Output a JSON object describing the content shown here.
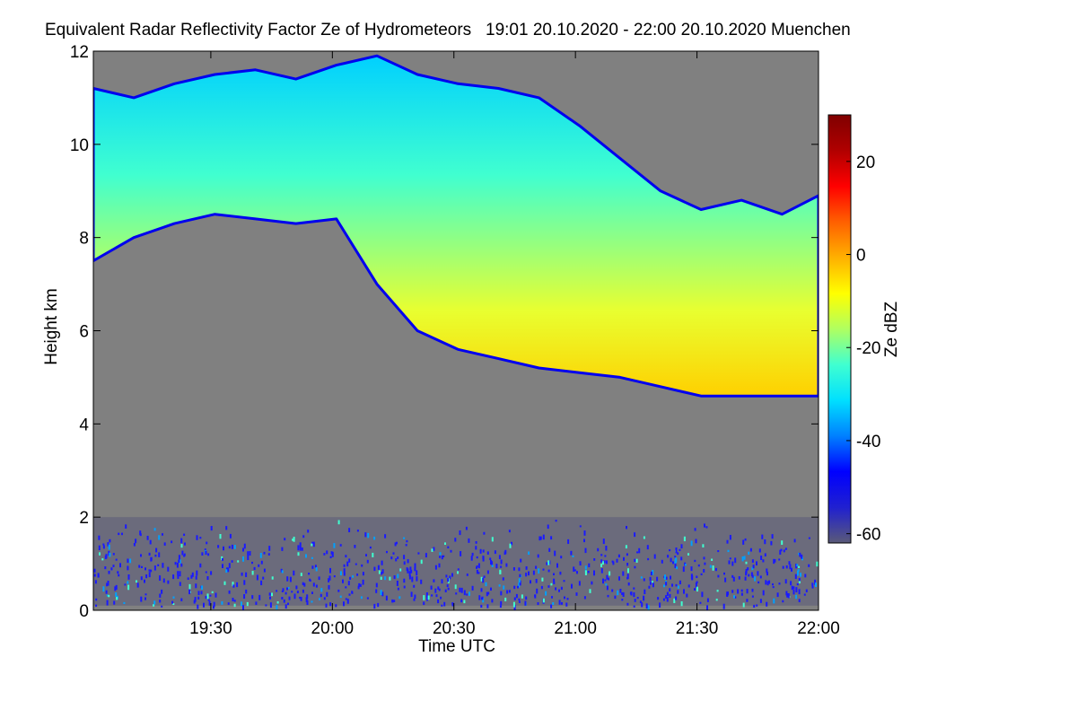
{
  "chart_data": {
    "type": "heatmap",
    "title": "Equivalent Radar Reflectivity Factor Ze of Hydrometeors   19:01 20.10.2020 - 22:00 20.10.2020 Muenchen",
    "xlabel": "Time UTC",
    "ylabel": "Height km",
    "colorbar_label": "Ze dBZ",
    "x_range": [
      "19:01",
      "22:00"
    ],
    "x_ticks": [
      "19:30",
      "20:00",
      "20:30",
      "21:00",
      "21:30",
      "22:00"
    ],
    "x_tick_minutes": [
      30,
      60,
      90,
      120,
      150,
      180
    ],
    "ylim": [
      0,
      12
    ],
    "y_ticks": [
      0,
      2,
      4,
      6,
      8,
      10,
      12
    ],
    "clim": [
      -62,
      30
    ],
    "colorbar_ticks": [
      -60,
      -40,
      -20,
      0,
      20
    ],
    "background_color": "#808080",
    "colormap": [
      "#5a5a78",
      "#2020d0",
      "#0000ff",
      "#0080ff",
      "#00e0ff",
      "#40ffd0",
      "#b0ff60",
      "#ffff00",
      "#ffb000",
      "#ff6000",
      "#ff0000",
      "#b00000",
      "#800000"
    ],
    "cloud_layer": {
      "description_time_minutes": [
        0,
        10,
        20,
        30,
        40,
        50,
        60,
        70,
        80,
        90,
        100,
        110,
        120,
        130,
        140,
        150,
        160,
        170,
        180
      ],
      "top_km": [
        11.2,
        11.0,
        11.3,
        11.5,
        11.6,
        11.4,
        11.7,
        11.9,
        11.5,
        11.3,
        11.2,
        11.0,
        10.4,
        9.7,
        9.0,
        8.6,
        8.8,
        8.5,
        8.9
      ],
      "base_km": [
        7.5,
        8.0,
        8.3,
        8.5,
        8.4,
        8.3,
        8.4,
        7.0,
        6.0,
        5.6,
        5.4,
        5.2,
        5.1,
        5.0,
        4.8,
        4.6,
        4.6,
        4.6,
        4.6
      ]
    },
    "low_echo_layer_km": [
      0.1,
      2.0
    ]
  }
}
